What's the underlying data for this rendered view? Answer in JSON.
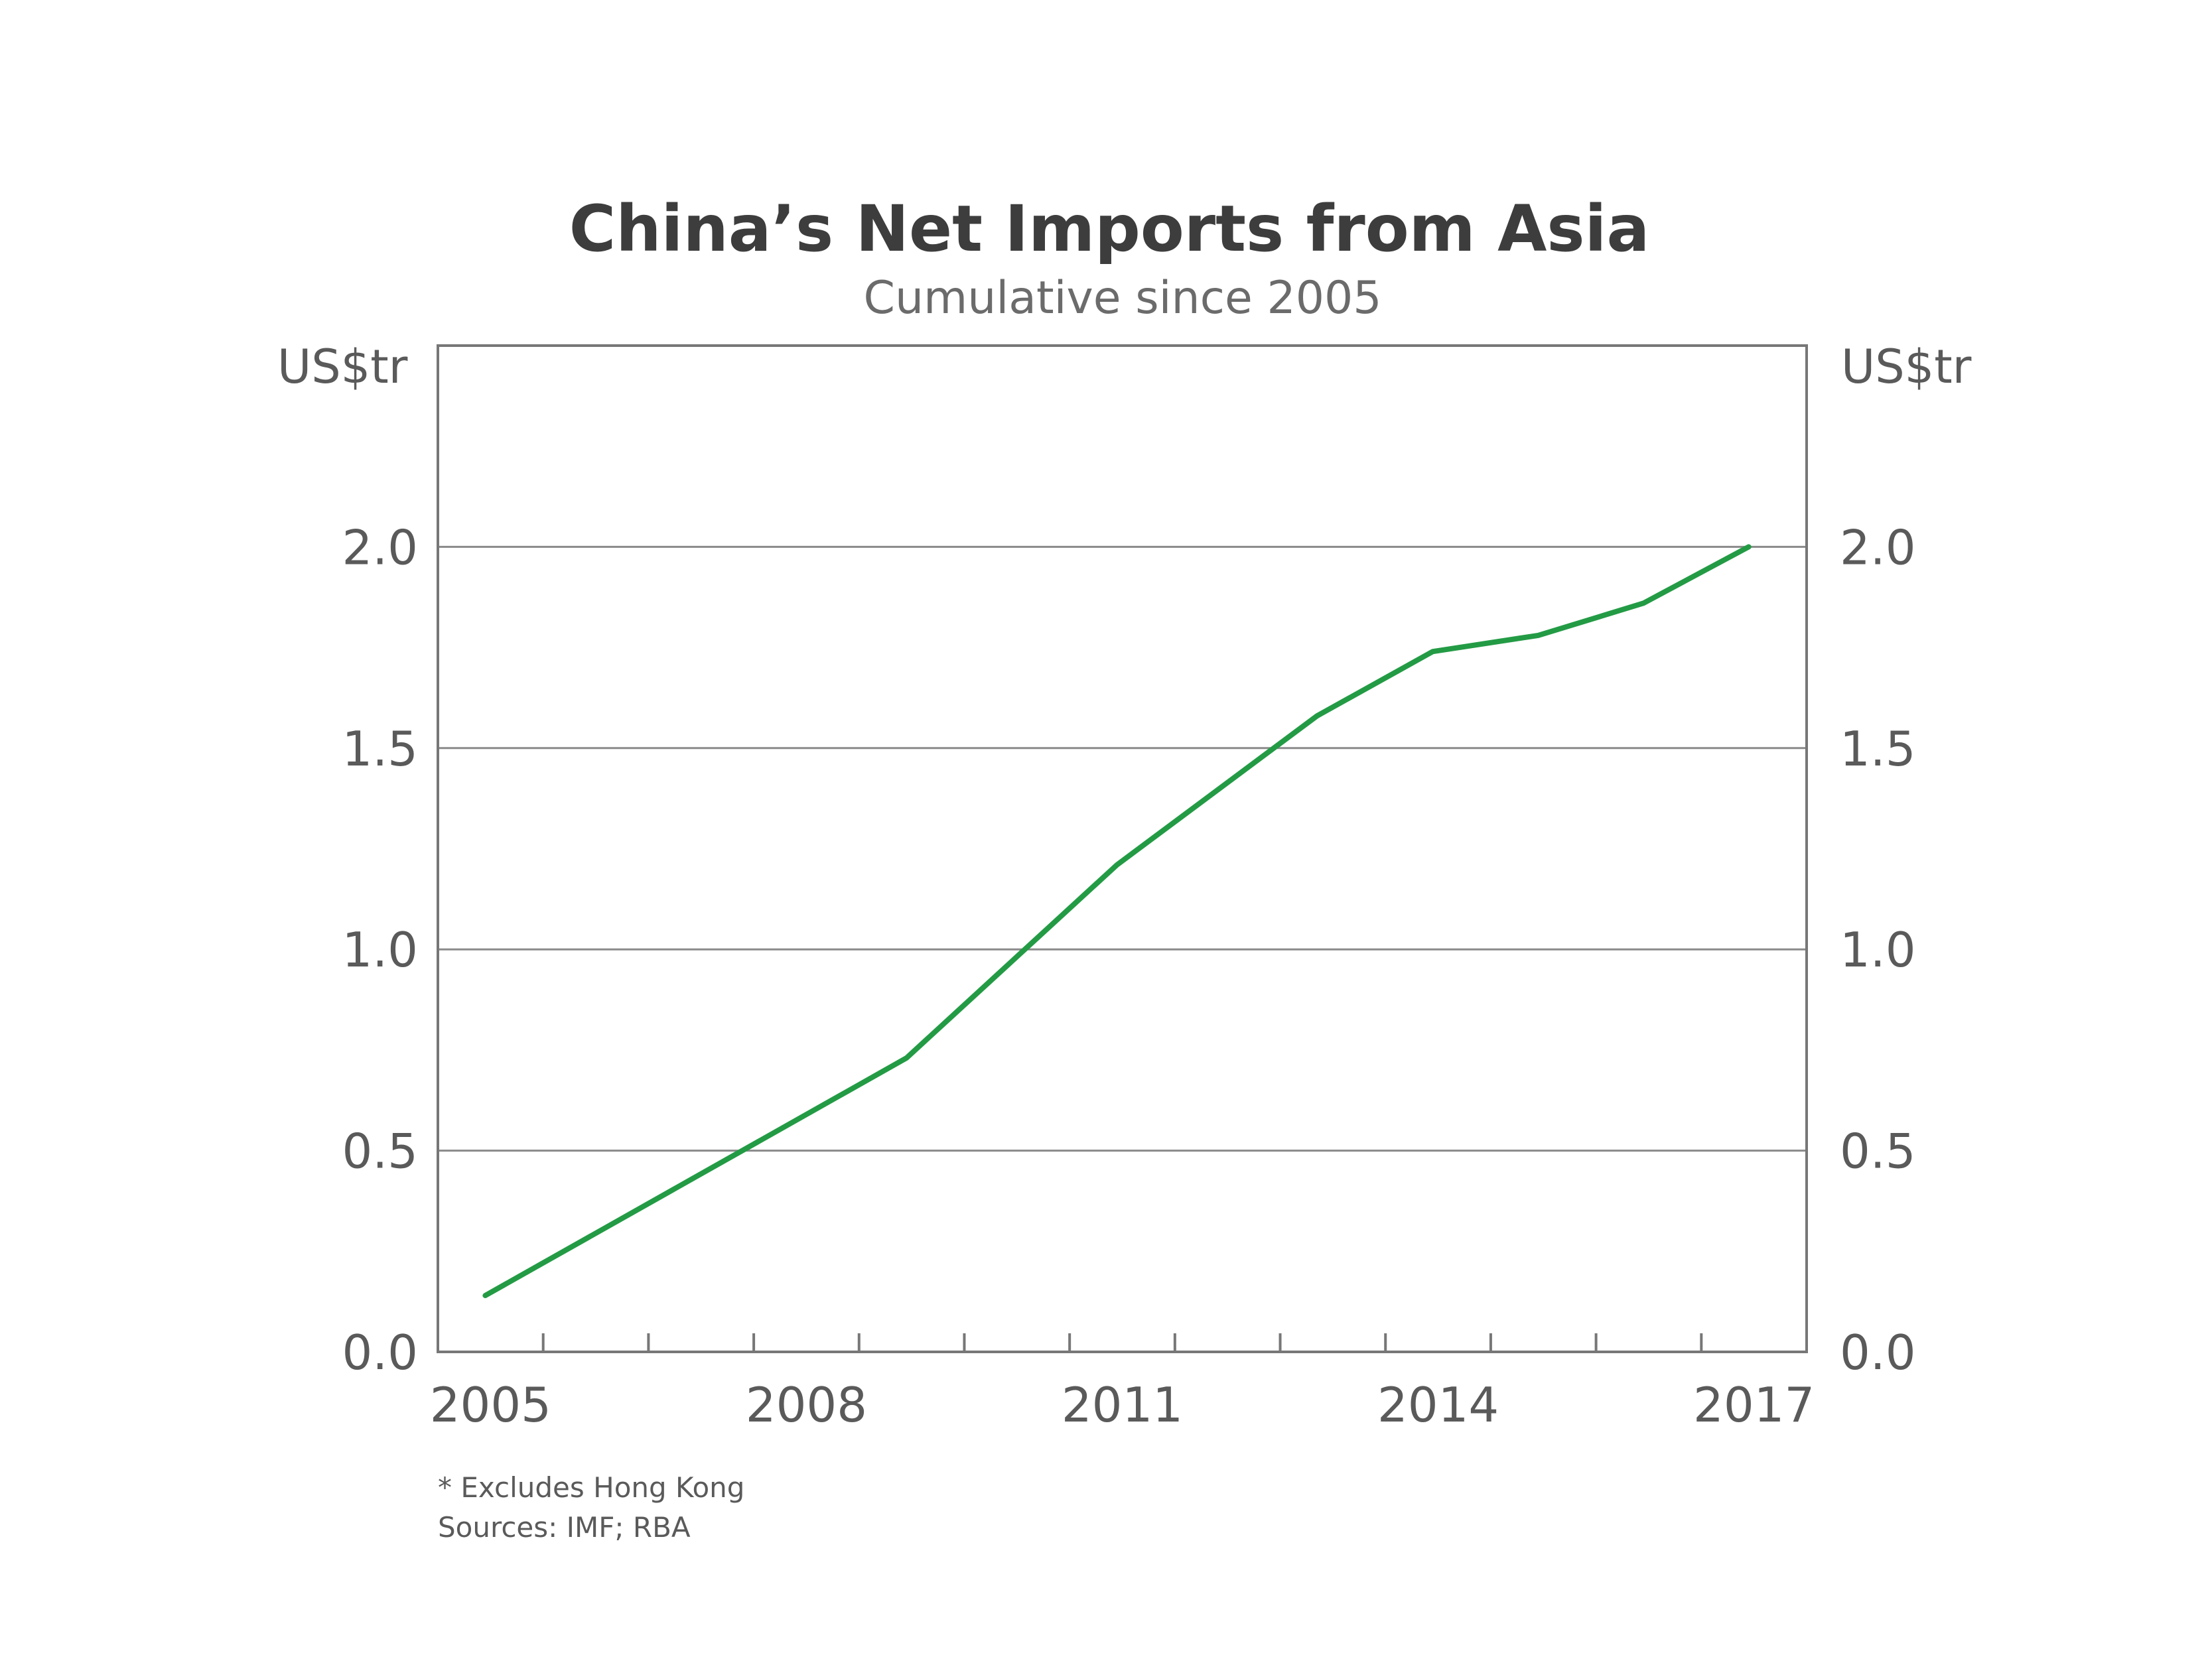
{
  "colors": {
    "series": "#239b45",
    "grid": "#8a8a8a",
    "frame": "#777777",
    "text": "#5a5a5a",
    "title": "#3d3d3d"
  },
  "chart_data": {
    "type": "line",
    "title": "China’s Net Imports from Asia",
    "subtitle": "Cumulative since 2005",
    "ylabel_left": "US$tr",
    "ylabel_right": "US$tr",
    "ylim": [
      0,
      2.5
    ],
    "yticks": [
      0,
      0.5,
      1.0,
      1.5,
      2.0
    ],
    "ytick_labels": [
      "0.0",
      "0.5",
      "1.0",
      "1.5",
      "2.0"
    ],
    "xlim": [
      2005,
      2018
    ],
    "xtick_labels": [
      "2005",
      "2008",
      "2011",
      "2014",
      "2017"
    ],
    "xtick_label_positions": [
      2005.5,
      2008.5,
      2011.5,
      2014.5,
      2017.5
    ],
    "minor_ticks": [
      2006,
      2007,
      2008,
      2009,
      2010,
      2011,
      2012,
      2013,
      2014,
      2015,
      2016,
      2017
    ],
    "grid": true,
    "series": [
      {
        "x": [
          2005.45,
          2009.45,
          2011.45,
          2013.35,
          2014.45,
          2015.45,
          2016.45,
          2017.45
        ],
        "values": [
          0.14,
          0.73,
          1.21,
          1.58,
          1.74,
          1.78,
          1.86,
          2.0
        ]
      }
    ]
  },
  "notes": {
    "footnote": "* Excludes Hong Kong",
    "sources": "Sources: IMF; RBA"
  }
}
